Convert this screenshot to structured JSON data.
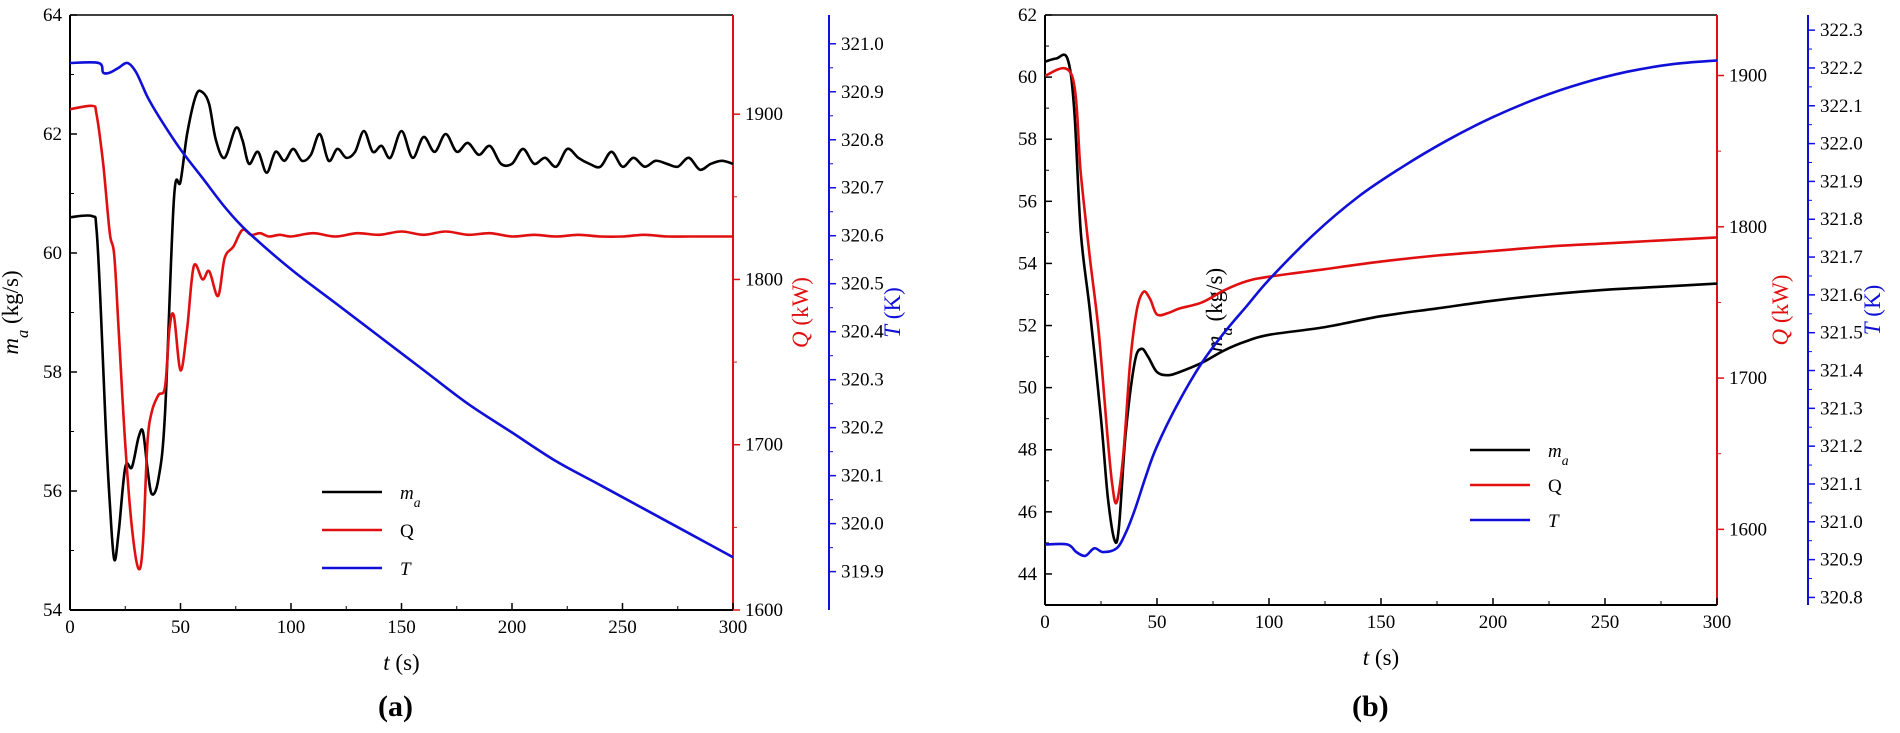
{
  "colors": {
    "ma": "#000000",
    "Q": "#e01010",
    "T": "#1010d8"
  },
  "chart_data": [
    {
      "type": "line",
      "panel_label": "(a)",
      "xlabel": "t (s)",
      "xlim": [
        0,
        300
      ],
      "xticks": [
        "0",
        "50",
        "100",
        "150",
        "200",
        "250",
        "300"
      ],
      "axes": {
        "ma": {
          "label": "m_a (kg/s)",
          "ylim": [
            54,
            64
          ],
          "ticks": [
            "54",
            "56",
            "58",
            "60",
            "62",
            "64"
          ]
        },
        "Q": {
          "label": "Q (kW)",
          "ylim": [
            1600,
            1960
          ],
          "ticks": [
            "1600",
            "1700",
            "1800",
            "1900"
          ]
        },
        "T": {
          "label": "T (K)",
          "ylim": [
            319.82,
            321.06
          ],
          "ticks": [
            "319.9",
            "320.0",
            "320.1",
            "320.2",
            "320.3",
            "320.4",
            "320.5",
            "320.6",
            "320.7",
            "320.8",
            "320.9",
            "321.0"
          ]
        }
      },
      "legend_position": "bottom-center",
      "series": [
        {
          "name": "m_a",
          "axis": "ma",
          "points": [
            [
              0,
              60.6
            ],
            [
              10,
              60.62
            ],
            [
              12,
              60.4
            ],
            [
              14,
              59.0
            ],
            [
              16,
              57.2
            ],
            [
              18,
              55.8
            ],
            [
              20,
              54.85
            ],
            [
              22,
              55.3
            ],
            [
              25,
              56.4
            ],
            [
              28,
              56.4
            ],
            [
              31,
              56.9
            ],
            [
              33,
              57.0
            ],
            [
              35,
              56.4
            ],
            [
              37,
              55.95
            ],
            [
              40,
              56.2
            ],
            [
              43,
              57.3
            ],
            [
              47,
              60.9
            ],
            [
              50,
              61.2
            ],
            [
              53,
              62.0
            ],
            [
              57,
              62.65
            ],
            [
              60,
              62.7
            ],
            [
              63,
              62.5
            ],
            [
              66,
              61.9
            ],
            [
              70,
              61.6
            ],
            [
              75,
              62.1
            ],
            [
              78,
              61.9
            ],
            [
              81,
              61.5
            ],
            [
              85,
              61.7
            ],
            [
              89,
              61.35
            ],
            [
              93,
              61.7
            ],
            [
              97,
              61.55
            ],
            [
              101,
              61.75
            ],
            [
              105,
              61.55
            ],
            [
              109,
              61.65
            ],
            [
              113,
              62.0
            ],
            [
              117,
              61.55
            ],
            [
              121,
              61.75
            ],
            [
              125,
              61.6
            ],
            [
              129,
              61.7
            ],
            [
              133,
              62.05
            ],
            [
              137,
              61.7
            ],
            [
              141,
              61.8
            ],
            [
              145,
              61.6
            ],
            [
              150,
              62.05
            ],
            [
              155,
              61.6
            ],
            [
              160,
              61.95
            ],
            [
              165,
              61.7
            ],
            [
              170,
              62.0
            ],
            [
              175,
              61.7
            ],
            [
              180,
              61.85
            ],
            [
              185,
              61.65
            ],
            [
              190,
              61.8
            ],
            [
              195,
              61.5
            ],
            [
              200,
              61.5
            ],
            [
              205,
              61.75
            ],
            [
              210,
              61.5
            ],
            [
              215,
              61.6
            ],
            [
              220,
              61.45
            ],
            [
              225,
              61.75
            ],
            [
              230,
              61.6
            ],
            [
              235,
              61.5
            ],
            [
              240,
              61.45
            ],
            [
              245,
              61.7
            ],
            [
              250,
              61.45
            ],
            [
              255,
              61.6
            ],
            [
              260,
              61.45
            ],
            [
              265,
              61.55
            ],
            [
              270,
              61.5
            ],
            [
              275,
              61.45
            ],
            [
              280,
              61.6
            ],
            [
              285,
              61.4
            ],
            [
              290,
              61.5
            ],
            [
              295,
              61.55
            ],
            [
              300,
              61.5
            ]
          ]
        },
        {
          "name": "Q",
          "axis": "Q",
          "points": [
            [
              0,
              1903
            ],
            [
              10,
              1905
            ],
            [
              12,
              1900
            ],
            [
              15,
              1870
            ],
            [
              18,
              1828
            ],
            [
              20,
              1815
            ],
            [
              22,
              1770
            ],
            [
              25,
              1700
            ],
            [
              28,
              1650
            ],
            [
              31,
              1625
            ],
            [
              33,
              1640
            ],
            [
              35,
              1700
            ],
            [
              37,
              1720
            ],
            [
              40,
              1730
            ],
            [
              43,
              1735
            ],
            [
              45,
              1770
            ],
            [
              47,
              1778
            ],
            [
              50,
              1745
            ],
            [
              53,
              1770
            ],
            [
              56,
              1808
            ],
            [
              60,
              1800
            ],
            [
              63,
              1805
            ],
            [
              67,
              1790
            ],
            [
              70,
              1813
            ],
            [
              74,
              1820
            ],
            [
              78,
              1830
            ],
            [
              82,
              1827
            ],
            [
              86,
              1828
            ],
            [
              90,
              1826
            ],
            [
              95,
              1827
            ],
            [
              100,
              1826
            ],
            [
              110,
              1828
            ],
            [
              120,
              1826
            ],
            [
              130,
              1828
            ],
            [
              140,
              1827
            ],
            [
              150,
              1829
            ],
            [
              160,
              1827
            ],
            [
              170,
              1829
            ],
            [
              180,
              1827
            ],
            [
              190,
              1828
            ],
            [
              200,
              1826
            ],
            [
              210,
              1827
            ],
            [
              220,
              1826
            ],
            [
              230,
              1827
            ],
            [
              240,
              1826
            ],
            [
              250,
              1826
            ],
            [
              260,
              1827
            ],
            [
              270,
              1826
            ],
            [
              280,
              1826
            ],
            [
              290,
              1826
            ],
            [
              300,
              1826
            ]
          ]
        },
        {
          "name": "T",
          "axis": "T",
          "points": [
            [
              0,
              320.96
            ],
            [
              13,
              320.96
            ],
            [
              15,
              320.94
            ],
            [
              18,
              320.94
            ],
            [
              22,
              320.95
            ],
            [
              26,
              320.96
            ],
            [
              30,
              320.94
            ],
            [
              35,
              320.89
            ],
            [
              40,
              320.85
            ],
            [
              50,
              320.78
            ],
            [
              60,
              320.72
            ],
            [
              70,
              320.66
            ],
            [
              80,
              320.61
            ],
            [
              100,
              320.53
            ],
            [
              120,
              320.46
            ],
            [
              140,
              320.39
            ],
            [
              160,
              320.32
            ],
            [
              180,
              320.25
            ],
            [
              200,
              320.19
            ],
            [
              220,
              320.13
            ],
            [
              240,
              320.08
            ],
            [
              260,
              320.03
            ],
            [
              280,
              319.98
            ],
            [
              300,
              319.93
            ]
          ]
        }
      ],
      "legend": [
        {
          "name": "m_a",
          "series": 0
        },
        {
          "name": "Q",
          "series": 1
        },
        {
          "name": "T",
          "series": 2
        }
      ]
    },
    {
      "type": "line",
      "panel_label": "(b)",
      "xlabel": "t (s)",
      "xlim": [
        0,
        300
      ],
      "xticks": [
        "0",
        "50",
        "100",
        "150",
        "200",
        "250",
        "300"
      ],
      "axes": {
        "ma": {
          "label": "m_a (kg/s)",
          "ylim": [
            43,
            62
          ],
          "ticks": [
            "44",
            "46",
            "48",
            "50",
            "52",
            "54",
            "56",
            "58",
            "60",
            "62"
          ]
        },
        "Q": {
          "label": "Q (kW)",
          "ylim": [
            1550,
            1940
          ],
          "ticks": [
            "1600",
            "1700",
            "1800",
            "1900"
          ]
        },
        "T": {
          "label": "T (K)",
          "ylim": [
            320.78,
            322.34
          ],
          "ticks": [
            "320.8",
            "320.9",
            "321.0",
            "321.1",
            "321.2",
            "321.3",
            "321.4",
            "321.5",
            "321.6",
            "321.7",
            "321.8",
            "321.9",
            "322.0",
            "322.1",
            "322.2",
            "322.3"
          ]
        }
      },
      "legend_position": "bottom-center",
      "series": [
        {
          "name": "m_a",
          "axis": "ma",
          "points": [
            [
              0,
              60.5
            ],
            [
              5,
              60.6
            ],
            [
              10,
              60.6
            ],
            [
              13,
              59.0
            ],
            [
              16,
              55.0
            ],
            [
              20,
              52.5
            ],
            [
              25,
              49.0
            ],
            [
              28,
              46.5
            ],
            [
              31,
              45.1
            ],
            [
              33,
              45.5
            ],
            [
              36,
              48.5
            ],
            [
              40,
              50.8
            ],
            [
              43,
              51.25
            ],
            [
              46,
              51.0
            ],
            [
              50,
              50.5
            ],
            [
              55,
              50.4
            ],
            [
              60,
              50.5
            ],
            [
              70,
              50.8
            ],
            [
              80,
              51.2
            ],
            [
              90,
              51.5
            ],
            [
              100,
              51.7
            ],
            [
              125,
              51.95
            ],
            [
              150,
              52.3
            ],
            [
              175,
              52.55
            ],
            [
              200,
              52.8
            ],
            [
              225,
              53.0
            ],
            [
              250,
              53.15
            ],
            [
              275,
              53.25
            ],
            [
              300,
              53.35
            ]
          ]
        },
        {
          "name": "Q",
          "axis": "Q",
          "points": [
            [
              0,
              1900
            ],
            [
              12,
              1900
            ],
            [
              16,
              1835
            ],
            [
              20,
              1780
            ],
            [
              24,
              1730
            ],
            [
              28,
              1660
            ],
            [
              30,
              1630
            ],
            [
              32,
              1618
            ],
            [
              35,
              1650
            ],
            [
              38,
              1710
            ],
            [
              41,
              1745
            ],
            [
              44,
              1757
            ],
            [
              47,
              1752
            ],
            [
              50,
              1742
            ],
            [
              55,
              1743
            ],
            [
              60,
              1746
            ],
            [
              70,
              1750
            ],
            [
              80,
              1758
            ],
            [
              90,
              1764
            ],
            [
              100,
              1767
            ],
            [
              125,
              1772
            ],
            [
              150,
              1777
            ],
            [
              175,
              1781
            ],
            [
              200,
              1784
            ],
            [
              225,
              1787
            ],
            [
              250,
              1789
            ],
            [
              275,
              1791
            ],
            [
              300,
              1793
            ]
          ]
        },
        {
          "name": "T",
          "axis": "T",
          "points": [
            [
              0,
              320.94
            ],
            [
              10,
              320.94
            ],
            [
              14,
              320.92
            ],
            [
              18,
              320.91
            ],
            [
              22,
              320.93
            ],
            [
              26,
              320.92
            ],
            [
              32,
              320.93
            ],
            [
              36,
              320.97
            ],
            [
              40,
              321.03
            ],
            [
              45,
              321.12
            ],
            [
              50,
              321.2
            ],
            [
              60,
              321.32
            ],
            [
              70,
              321.42
            ],
            [
              80,
              321.5
            ],
            [
              90,
              321.57
            ],
            [
              100,
              321.64
            ],
            [
              120,
              321.76
            ],
            [
              140,
              321.86
            ],
            [
              160,
              321.94
            ],
            [
              180,
              322.01
            ],
            [
              200,
              322.07
            ],
            [
              220,
              322.12
            ],
            [
              240,
              322.16
            ],
            [
              260,
              322.19
            ],
            [
              280,
              322.21
            ],
            [
              300,
              322.22
            ]
          ]
        }
      ],
      "legend": [
        {
          "name": "m_a",
          "series": 0
        },
        {
          "name": "Q",
          "series": 1
        },
        {
          "name": "T",
          "series": 2
        }
      ]
    }
  ]
}
